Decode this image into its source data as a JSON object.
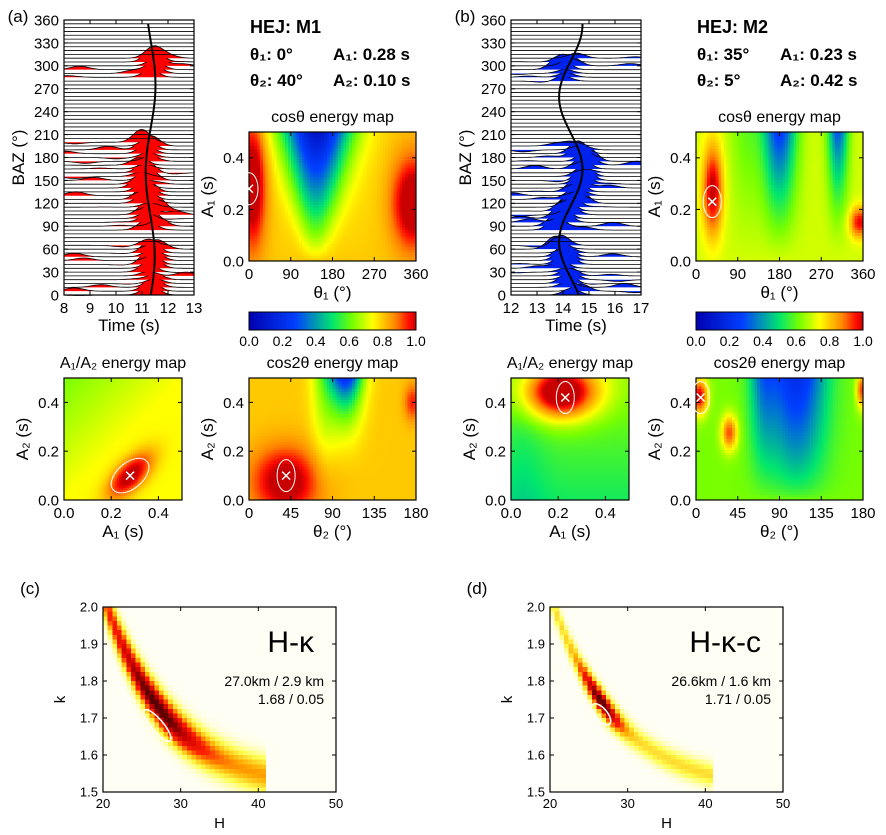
{
  "chart_data": {
    "type": "heatmap",
    "colorbar": {
      "ticks": [
        "0.0",
        "0.2",
        "0.4",
        "0.6",
        "0.8",
        "1.0"
      ],
      "range": [
        0,
        1
      ]
    },
    "panels": [
      {
        "label": "(a)",
        "station": "HEJ: M1",
        "theta1_text": "θ₁: 0°",
        "A1_text": "A₁: 0.28 s",
        "theta2_text": "θ₂: 40°",
        "A2_text": "A₂: 0.10 s",
        "best": {
          "theta1": 0,
          "A1": 0.28,
          "theta2": 40,
          "A2": 0.1
        },
        "fill_color": "#ff0000",
        "waveform": {
          "type": "line",
          "xlabel": "Time (s)",
          "ylabel": "BAZ (°)",
          "xlim": [
            8,
            13
          ],
          "ylim": [
            0,
            360
          ],
          "xticks": [
            "8",
            "9",
            "10",
            "11",
            "12",
            "13"
          ],
          "yticks": [
            "0",
            "30",
            "60",
            "90",
            "120",
            "150",
            "180",
            "210",
            "240",
            "270",
            "300",
            "330",
            "360"
          ]
        },
        "maps": [
          {
            "id": "cos",
            "title": "cosθ energy map",
            "xlabel": "θ₁ (°)",
            "ylabel": "A₁ (s)",
            "xlim": [
              0,
              360
            ],
            "ylim": [
              0,
              0.5
            ],
            "xticks": [
              "0",
              "90",
              "180",
              "270",
              "360"
            ],
            "yticks": [
              "0.0",
              "0.2",
              "0.4"
            ]
          },
          {
            "id": "a1a2",
            "title": "A₁/A₂ energy map",
            "xlabel": "A₁ (s)",
            "ylabel": "A₂ (s)",
            "xlim": [
              0,
              0.5
            ],
            "ylim": [
              0,
              0.5
            ],
            "xticks": [
              "0.0",
              "0.2",
              "0.4"
            ],
            "yticks": [
              "0.0",
              "0.2",
              "0.4"
            ]
          },
          {
            "id": "cos2",
            "title": "cos2θ energy map",
            "xlabel": "θ₂ (°)",
            "ylabel": "A₂ (s)",
            "xlim": [
              0,
              180
            ],
            "ylim": [
              0,
              0.5
            ],
            "xticks": [
              "0",
              "45",
              "90",
              "135",
              "180"
            ],
            "yticks": [
              "0.0",
              "0.2",
              "0.4"
            ]
          }
        ]
      },
      {
        "label": "(b)",
        "station": "HEJ: M2",
        "theta1_text": "θ₁: 35°",
        "A1_text": "A₁: 0.23 s",
        "theta2_text": "θ₂: 5°",
        "A2_text": "A₂: 0.42 s",
        "best": {
          "theta1": 35,
          "A1": 0.23,
          "theta2": 5,
          "A2": 0.42
        },
        "fill_color": "#0022ee",
        "waveform": {
          "type": "line",
          "xlabel": "Time (s)",
          "ylabel": "BAZ (°)",
          "xlim": [
            12,
            17
          ],
          "ylim": [
            0,
            360
          ],
          "xticks": [
            "12",
            "13",
            "14",
            "15",
            "16",
            "17"
          ],
          "yticks": [
            "0",
            "30",
            "60",
            "90",
            "120",
            "150",
            "180",
            "210",
            "240",
            "270",
            "300",
            "330",
            "360"
          ]
        },
        "maps": [
          {
            "id": "cos",
            "title": "cosθ energy map",
            "xlabel": "θ₁ (°)",
            "ylabel": "A₁ (s)",
            "xlim": [
              0,
              360
            ],
            "ylim": [
              0,
              0.5
            ],
            "xticks": [
              "0",
              "90",
              "180",
              "270",
              "360"
            ],
            "yticks": [
              "0.0",
              "0.2",
              "0.4"
            ]
          },
          {
            "id": "a1a2",
            "title": "A₁/A₂ energy map",
            "xlabel": "A₁ (s)",
            "ylabel": "A₂ (s)",
            "xlim": [
              0,
              0.5
            ],
            "ylim": [
              0,
              0.5
            ],
            "xticks": [
              "0.0",
              "0.2",
              "0.4"
            ],
            "yticks": [
              "0.0",
              "0.2",
              "0.4"
            ]
          },
          {
            "id": "cos2",
            "title": "cos2θ energy map",
            "xlabel": "θ₂ (°)",
            "ylabel": "A₂ (s)",
            "xlim": [
              0,
              180
            ],
            "ylim": [
              0,
              0.5
            ],
            "xticks": [
              "0",
              "45",
              "90",
              "135",
              "180"
            ],
            "yticks": [
              "0.0",
              "0.2",
              "0.4"
            ]
          }
        ]
      }
    ],
    "hk": [
      {
        "label": "(c)",
        "title": "H-κ",
        "stat1": "27.0km / 2.9 km",
        "stat2": "1.68 / 0.05",
        "H": 27.0,
        "H_err": 2.9,
        "k": 1.68,
        "k_err": 0.05,
        "xlabel": "H",
        "ylabel": "k",
        "xlim": [
          20,
          50
        ],
        "ylim": [
          1.5,
          2.0
        ],
        "xticks": [
          "20",
          "30",
          "40",
          "50"
        ],
        "yticks": [
          "1.5",
          "1.6",
          "1.7",
          "1.8",
          "1.9",
          "2.0"
        ]
      },
      {
        "label": "(d)",
        "title": "H-κ-c",
        "stat1": "26.6km / 1.6 km",
        "stat2": "1.71 / 0.05",
        "H": 26.6,
        "H_err": 1.6,
        "k": 1.71,
        "k_err": 0.05,
        "xlabel": "H",
        "ylabel": "k",
        "xlim": [
          20,
          50
        ],
        "ylim": [
          1.5,
          2.0
        ],
        "xticks": [
          "20",
          "30",
          "40",
          "50"
        ],
        "yticks": [
          "1.5",
          "1.6",
          "1.7",
          "1.8",
          "1.9",
          "2.0"
        ]
      }
    ]
  }
}
